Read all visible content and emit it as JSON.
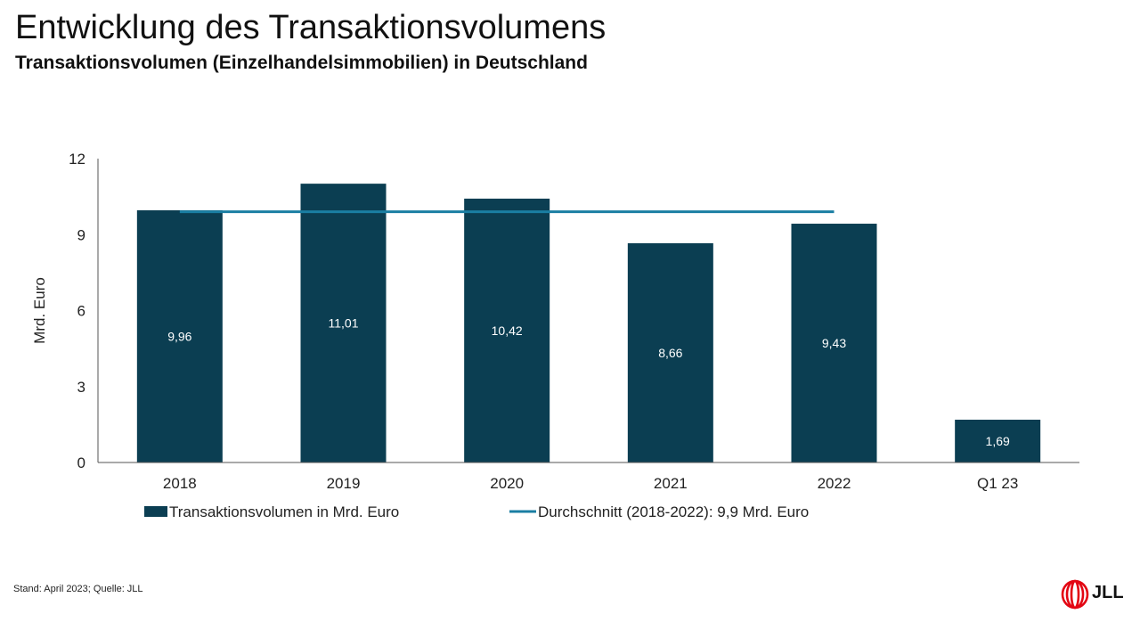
{
  "header": {
    "title": "Entwicklung des Transaktionsvolumens",
    "subtitle": "Transaktionsvolumen (Einzelhandelsimmobilien) in Deutschland"
  },
  "footer": {
    "source": "Stand: April 2023; Quelle: JLL"
  },
  "logo": {
    "text": "JLL",
    "icon": "jll-logo-icon",
    "color": "#e30613"
  },
  "chart_data": {
    "type": "bar",
    "categories": [
      "2018",
      "2019",
      "2020",
      "2021",
      "2022",
      "Q1 23"
    ],
    "series": [
      {
        "name": "Transaktionsvolumen in Mrd. Euro",
        "type": "bar",
        "color": "#0b3e52",
        "values": [
          9.96,
          11.01,
          10.42,
          8.66,
          9.43,
          1.69
        ],
        "labels": [
          "9,96",
          "11,01",
          "10,42",
          "8,66",
          "9,43",
          "1,69"
        ]
      },
      {
        "name": "Durchschnitt (2018-2022): 9,9 Mrd. Euro",
        "type": "line",
        "color": "#1a7ea3",
        "value": 9.9,
        "span": [
          "2018",
          "2022"
        ]
      }
    ],
    "ylabel": "Mrd. Euro",
    "xlabel": "",
    "ylim": [
      0,
      12
    ],
    "yticks": [
      0,
      3,
      6,
      9,
      12
    ],
    "grid": false,
    "legend": "bottom"
  }
}
